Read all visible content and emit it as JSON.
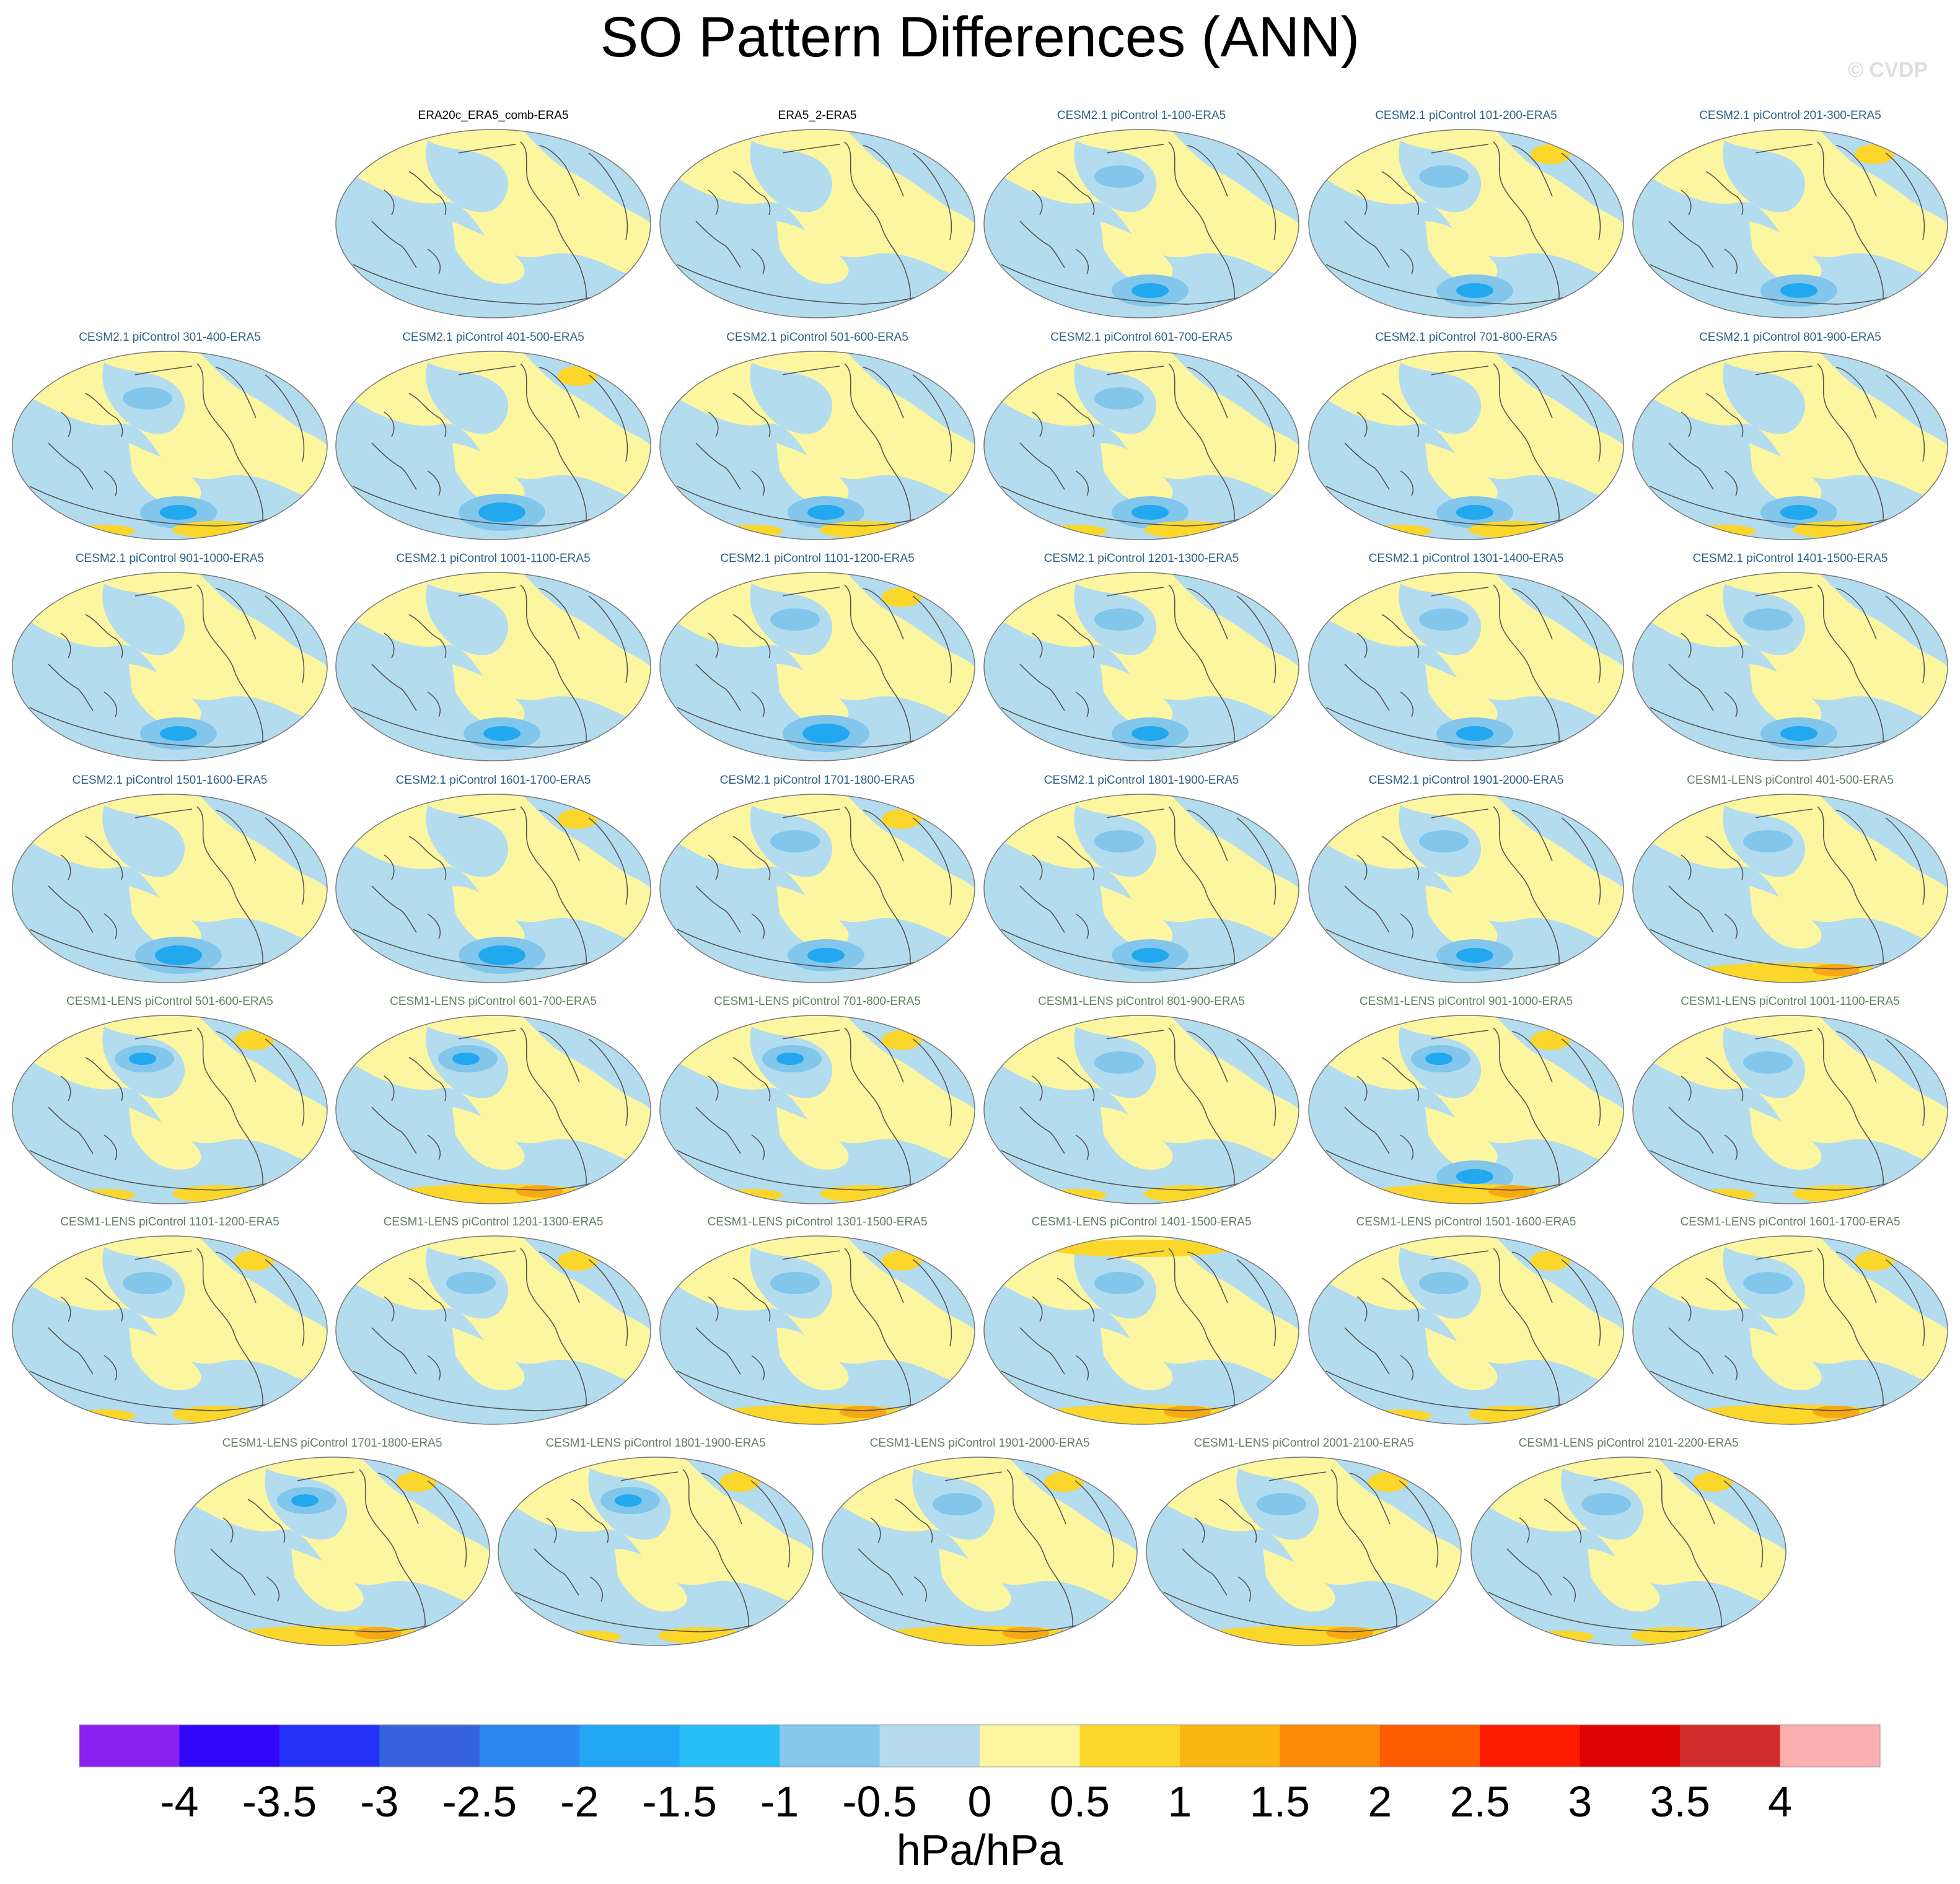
{
  "title": "SO Pattern Differences (ANN)",
  "watermark": "© CVDP",
  "label_colors": {
    "obs": "#000000",
    "cesm2": "#2b5f86",
    "cesm1": "#5e8060"
  },
  "map_colors": {
    "ocean_pos": "#fdf6a0",
    "ocean_neg": "#b4dcef",
    "neg_mid": "#82c6ec",
    "neg_strong": "#22a8ee",
    "pos_mid": "#fbd62b",
    "pos_strong": "#f7a812",
    "coast": "#555555",
    "outline": "#777777"
  },
  "maps": [
    {
      "label": "ERA20c_ERA5_comb-ERA5",
      "group": "obs",
      "features": []
    },
    {
      "label": "ERA5_2-ERA5",
      "group": "obs",
      "features": []
    },
    {
      "label": "CESM2.1 piControl 1-100-ERA5",
      "group": "cesm2",
      "features": [
        "sp_blue",
        "np_blue_weak"
      ]
    },
    {
      "label": "CESM2.1 piControl 101-200-ERA5",
      "group": "cesm2",
      "features": [
        "sp_blue",
        "np_blue_weak",
        "ne_yellow"
      ]
    },
    {
      "label": "CESM2.1 piControl 201-300-ERA5",
      "group": "cesm2",
      "features": [
        "sp_blue",
        "ne_yellow"
      ]
    },
    {
      "label": "CESM2.1 piControl 301-400-ERA5",
      "group": "cesm2",
      "features": [
        "sp_blue",
        "np_blue_weak",
        "s_yellow"
      ]
    },
    {
      "label": "CESM2.1 piControl 401-500-ERA5",
      "group": "cesm2",
      "features": [
        "sp_blue_strong",
        "ne_yellow"
      ]
    },
    {
      "label": "CESM2.1 piControl 501-600-ERA5",
      "group": "cesm2",
      "features": [
        "sp_blue",
        "s_yellow"
      ]
    },
    {
      "label": "CESM2.1 piControl 601-700-ERA5",
      "group": "cesm2",
      "features": [
        "sp_blue",
        "np_blue_weak",
        "s_yellow"
      ]
    },
    {
      "label": "CESM2.1 piControl 701-800-ERA5",
      "group": "cesm2",
      "features": [
        "sp_blue",
        "s_yellow"
      ]
    },
    {
      "label": "CESM2.1 piControl 801-900-ERA5",
      "group": "cesm2",
      "features": [
        "sp_blue",
        "s_yellow"
      ]
    },
    {
      "label": "CESM2.1 piControl 901-1000-ERA5",
      "group": "cesm2",
      "features": [
        "sp_blue"
      ]
    },
    {
      "label": "CESM2.1 piControl 1001-1100-ERA5",
      "group": "cesm2",
      "features": [
        "sp_blue"
      ]
    },
    {
      "label": "CESM2.1 piControl 1101-1200-ERA5",
      "group": "cesm2",
      "features": [
        "sp_blue_strong",
        "ne_yellow",
        "np_blue_weak"
      ]
    },
    {
      "label": "CESM2.1 piControl 1201-1300-ERA5",
      "group": "cesm2",
      "features": [
        "sp_blue",
        "np_blue_weak"
      ]
    },
    {
      "label": "CESM2.1 piControl 1301-1400-ERA5",
      "group": "cesm2",
      "features": [
        "sp_blue",
        "np_blue_weak"
      ]
    },
    {
      "label": "CESM2.1 piControl 1401-1500-ERA5",
      "group": "cesm2",
      "features": [
        "sp_blue",
        "np_blue_weak"
      ]
    },
    {
      "label": "CESM2.1 piControl 1501-1600-ERA5",
      "group": "cesm2",
      "features": [
        "sp_blue_strong"
      ]
    },
    {
      "label": "CESM2.1 piControl 1601-1700-ERA5",
      "group": "cesm2",
      "features": [
        "sp_blue_strong",
        "ne_yellow"
      ]
    },
    {
      "label": "CESM2.1 piControl 1701-1800-ERA5",
      "group": "cesm2",
      "features": [
        "sp_blue",
        "ne_yellow",
        "np_blue_weak"
      ]
    },
    {
      "label": "CESM2.1 piControl 1801-1900-ERA5",
      "group": "cesm2",
      "features": [
        "sp_blue",
        "np_blue_weak"
      ]
    },
    {
      "label": "CESM2.1 piControl 1901-2000-ERA5",
      "group": "cesm2",
      "features": [
        "sp_blue",
        "np_blue_weak"
      ]
    },
    {
      "label": "CESM1-LENS piControl 401-500-ERA5",
      "group": "cesm1",
      "features": [
        "np_blue_weak",
        "s_orange"
      ]
    },
    {
      "label": "CESM1-LENS piControl 501-600-ERA5",
      "group": "cesm1",
      "features": [
        "np_blue",
        "s_yellow",
        "ne_yellow"
      ]
    },
    {
      "label": "CESM1-LENS piControl 601-700-ERA5",
      "group": "cesm1",
      "features": [
        "np_blue",
        "s_orange"
      ]
    },
    {
      "label": "CESM1-LENS piControl 701-800-ERA5",
      "group": "cesm1",
      "features": [
        "np_blue",
        "s_yellow",
        "ne_yellow"
      ]
    },
    {
      "label": "CESM1-LENS piControl 801-900-ERA5",
      "group": "cesm1",
      "features": [
        "np_blue_weak",
        "s_yellow"
      ]
    },
    {
      "label": "CESM1-LENS piControl 901-1000-ERA5",
      "group": "cesm1",
      "features": [
        "np_blue",
        "sp_blue",
        "s_orange",
        "ne_yellow"
      ]
    },
    {
      "label": "CESM1-LENS piControl 1001-1100-ERA5",
      "group": "cesm1",
      "features": [
        "np_blue_weak",
        "s_yellow"
      ]
    },
    {
      "label": "CESM1-LENS piControl 1101-1200-ERA5",
      "group": "cesm1",
      "features": [
        "np_blue_weak",
        "s_yellow",
        "ne_yellow"
      ]
    },
    {
      "label": "CESM1-LENS piControl 1201-1300-ERA5",
      "group": "cesm1",
      "features": [
        "np_blue_weak",
        "ne_yellow"
      ]
    },
    {
      "label": "CESM1-LENS piControl 1301-1500-ERA5",
      "group": "cesm1",
      "features": [
        "np_blue_weak",
        "s_orange",
        "ne_yellow"
      ]
    },
    {
      "label": "CESM1-LENS piControl 1401-1500-ERA5",
      "group": "cesm1",
      "features": [
        "np_blue_weak",
        "s_orange",
        "n_yellow"
      ]
    },
    {
      "label": "CESM1-LENS piControl 1501-1600-ERA5",
      "group": "cesm1",
      "features": [
        "np_blue_weak",
        "s_yellow",
        "ne_yellow"
      ]
    },
    {
      "label": "CESM1-LENS piControl 1601-1700-ERA5",
      "group": "cesm1",
      "features": [
        "np_blue_weak",
        "s_orange",
        "ne_yellow"
      ]
    },
    {
      "label": "CESM1-LENS piControl 1701-1800-ERA5",
      "group": "cesm1",
      "features": [
        "np_blue",
        "s_orange",
        "ne_yellow"
      ]
    },
    {
      "label": "CESM1-LENS piControl 1801-1900-ERA5",
      "group": "cesm1",
      "features": [
        "np_blue",
        "s_yellow",
        "ne_yellow"
      ]
    },
    {
      "label": "CESM1-LENS piControl 1901-2000-ERA5",
      "group": "cesm1",
      "features": [
        "np_blue_weak",
        "s_orange",
        "ne_yellow"
      ]
    },
    {
      "label": "CESM1-LENS piControl 2001-2100-ERA5",
      "group": "cesm1",
      "features": [
        "np_blue_weak",
        "s_orange",
        "ne_yellow"
      ]
    },
    {
      "label": "CESM1-LENS piControl 2101-2200-ERA5",
      "group": "cesm1",
      "features": [
        "np_blue_weak",
        "s_yellow",
        "ne_yellow"
      ]
    }
  ],
  "colorbar": {
    "colors": [
      "#8a21ee",
      "#3107f8",
      "#2332f5",
      "#3662e0",
      "#2d87f1",
      "#22a6f6",
      "#27bff8",
      "#85c8ee",
      "#b6dbef",
      "#fdf69f",
      "#fbd729",
      "#fbb611",
      "#fd8b07",
      "#fd5c01",
      "#fc1c03",
      "#dd0305",
      "#d22c2d",
      "#fcafaf"
    ],
    "tick_labels": [
      "-4",
      "-3.5",
      "-3",
      "-2.5",
      "-2",
      "-1.5",
      "-1",
      "-0.5",
      "0",
      "0.5",
      "1",
      "1.5",
      "2",
      "2.5",
      "3",
      "3.5",
      "4"
    ],
    "units": "hPa/hPa"
  }
}
